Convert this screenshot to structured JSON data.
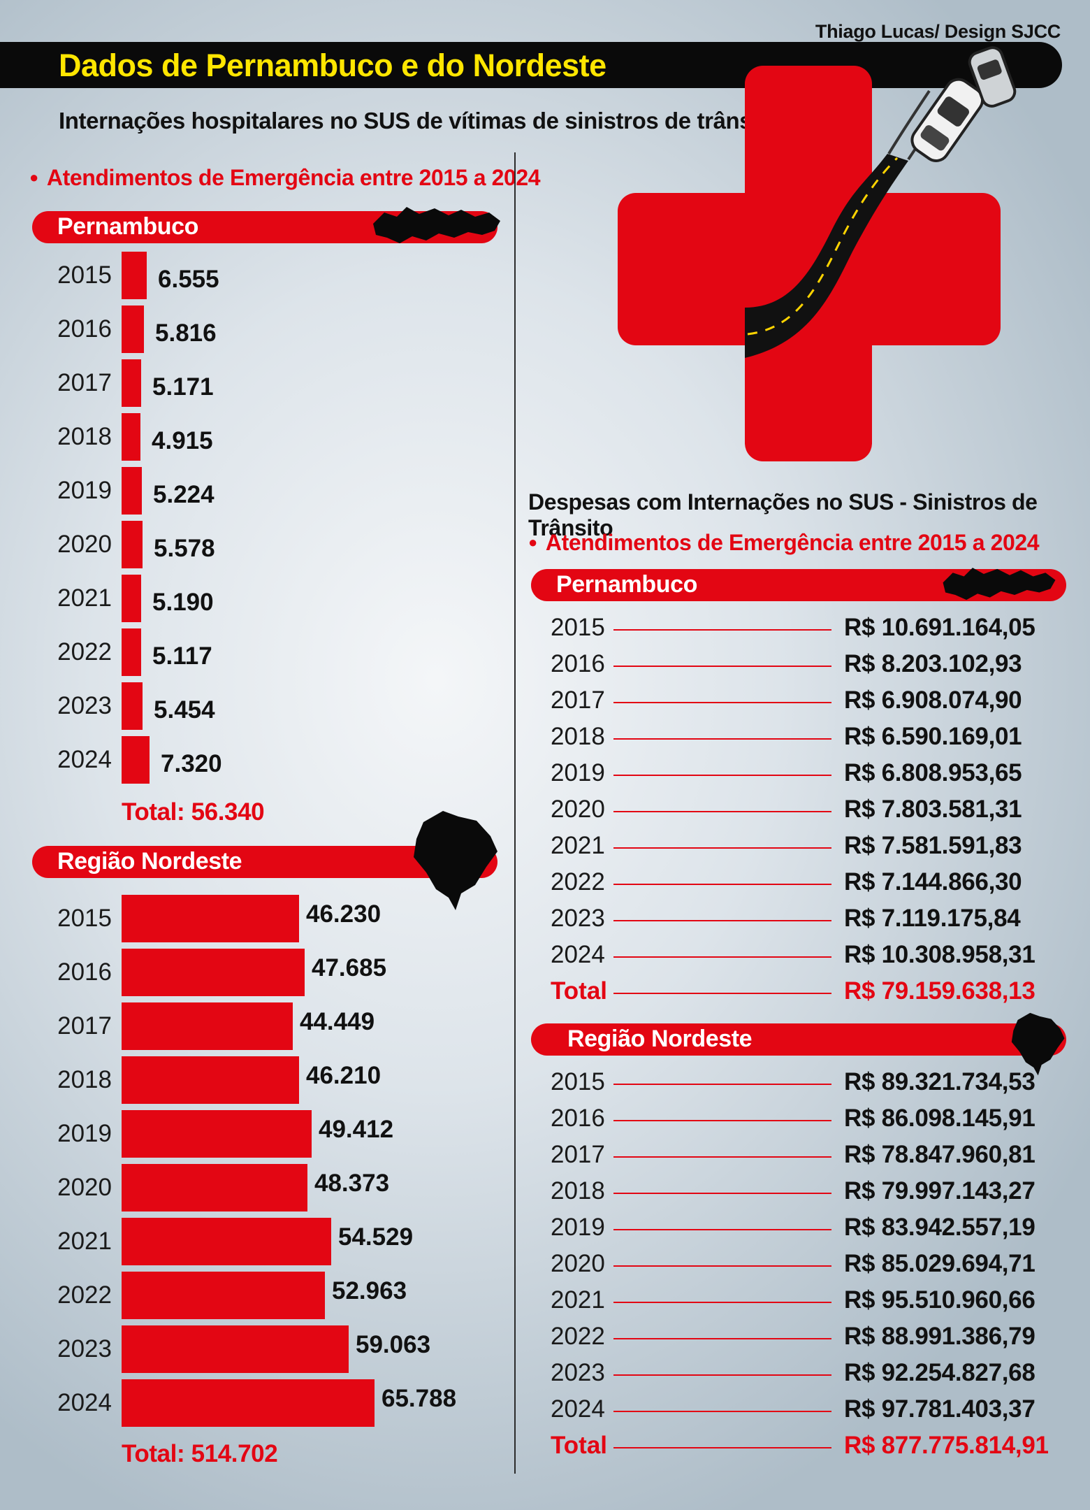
{
  "credit": "Thiago Lucas/ Design SJCC",
  "banner_title": "Dados de Pernambuco e do Nordeste",
  "subtitle": "Internações hospitalares no SUS de vítimas de sinistros de trânsito",
  "left": {
    "section_title": "Atendimentos de Emergência entre 2015 a 2024"
  },
  "right": {
    "heading": "Despesas com Internações  no SUS - Sinistros de Trânsito",
    "section_title": "Atendimentos de Emergência entre 2015 a 2024"
  },
  "colors": {
    "accent": "#e30613",
    "banner": "#0a0a0a",
    "banner_text": "#ffe600"
  },
  "chart_data": [
    {
      "type": "bar",
      "orientation": "horizontal",
      "title": "Pernambuco",
      "categories": [
        "2015",
        "2016",
        "2017",
        "2018",
        "2019",
        "2020",
        "2021",
        "2022",
        "2023",
        "2024"
      ],
      "values": [
        6555,
        5816,
        5171,
        4915,
        5224,
        5578,
        5190,
        5117,
        5454,
        7320
      ],
      "value_labels": [
        "6.555",
        "5.816",
        "5.171",
        "4.915",
        "5.224",
        "5.578",
        "5.190",
        "5.117",
        "5.454",
        "7.320"
      ],
      "total_label": "Total: 56.340"
    },
    {
      "type": "bar",
      "orientation": "horizontal",
      "title": "Região Nordeste",
      "categories": [
        "2015",
        "2016",
        "2017",
        "2018",
        "2019",
        "2020",
        "2021",
        "2022",
        "2023",
        "2024"
      ],
      "values": [
        46230,
        47685,
        44449,
        46210,
        49412,
        48373,
        54529,
        52963,
        59063,
        65788
      ],
      "value_labels": [
        "46.230",
        "47.685",
        "44.449",
        "46.210",
        "49.412",
        "48.373",
        "54.529",
        "52.963",
        "59.063",
        "65.788"
      ],
      "total_label": "Total: 514.702"
    },
    {
      "type": "table",
      "title": "Pernambuco",
      "rows": [
        {
          "year": "2015",
          "value": "R$ 10.691.164,05"
        },
        {
          "year": "2016",
          "value": "R$ 8.203.102,93"
        },
        {
          "year": "2017",
          "value": "R$ 6.908.074,90"
        },
        {
          "year": "2018",
          "value": "R$ 6.590.169,01"
        },
        {
          "year": "2019",
          "value": "R$ 6.808.953,65"
        },
        {
          "year": "2020",
          "value": "R$ 7.803.581,31"
        },
        {
          "year": "2021",
          "value": "R$ 7.581.591,83"
        },
        {
          "year": "2022",
          "value": "R$ 7.144.866,30"
        },
        {
          "year": "2023",
          "value": "R$ 7.119.175,84"
        },
        {
          "year": "2024",
          "value": "R$ 10.308.958,31"
        }
      ],
      "total": {
        "year": "Total",
        "value": "R$ 79.159.638,13"
      }
    },
    {
      "type": "table",
      "title": "Região Nordeste",
      "rows": [
        {
          "year": "2015",
          "value": "R$ 89.321.734,53"
        },
        {
          "year": "2016",
          "value": "R$ 86.098.145,91"
        },
        {
          "year": "2017",
          "value": "R$ 78.847.960,81"
        },
        {
          "year": "2018",
          "value": "R$ 79.997.143,27"
        },
        {
          "year": "2019",
          "value": "R$ 83.942.557,19"
        },
        {
          "year": "2020",
          "value": "R$ 85.029.694,71"
        },
        {
          "year": "2021",
          "value": "R$ 95.510.960,66"
        },
        {
          "year": "2022",
          "value": "R$ 88.991.386,79"
        },
        {
          "year": "2023",
          "value": "R$ 92.254.827,68"
        },
        {
          "year": "2024",
          "value": "R$ 97.781.403,37"
        }
      ],
      "total": {
        "year": "Total",
        "value": "R$ 877.775.814,91"
      }
    }
  ]
}
